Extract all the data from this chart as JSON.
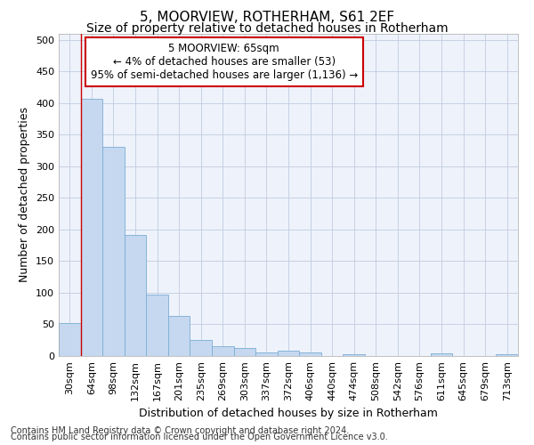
{
  "title": "5, MOORVIEW, ROTHERHAM, S61 2EF",
  "subtitle": "Size of property relative to detached houses in Rotherham",
  "xlabel": "Distribution of detached houses by size in Rotherham",
  "ylabel": "Number of detached properties",
  "categories": [
    "30sqm",
    "64sqm",
    "98sqm",
    "132sqm",
    "167sqm",
    "201sqm",
    "235sqm",
    "269sqm",
    "303sqm",
    "337sqm",
    "372sqm",
    "406sqm",
    "440sqm",
    "474sqm",
    "508sqm",
    "542sqm",
    "576sqm",
    "611sqm",
    "645sqm",
    "679sqm",
    "713sqm"
  ],
  "values": [
    52,
    407,
    331,
    192,
    97,
    63,
    25,
    15,
    12,
    6,
    9,
    5,
    0,
    3,
    0,
    0,
    0,
    4,
    0,
    0,
    3
  ],
  "bar_color": "#c5d8f0",
  "bar_edge_color": "#7badd4",
  "vline_x": 1,
  "vline_color": "#cc0000",
  "annotation_text": "5 MOORVIEW: 65sqm\n← 4% of detached houses are smaller (53)\n95% of semi-detached houses are larger (1,136) →",
  "annotation_box_color": "#ffffff",
  "annotation_box_edge": "#cc0000",
  "ylim": [
    0,
    510
  ],
  "yticks": [
    0,
    50,
    100,
    150,
    200,
    250,
    300,
    350,
    400,
    450,
    500
  ],
  "footnote1": "Contains HM Land Registry data © Crown copyright and database right 2024.",
  "footnote2": "Contains public sector information licensed under the Open Government Licence v3.0.",
  "background_color": "#eef2fb",
  "grid_color": "#c0cce0",
  "title_fontsize": 11,
  "subtitle_fontsize": 10,
  "axis_label_fontsize": 9,
  "tick_fontsize": 8,
  "footnote_fontsize": 7
}
